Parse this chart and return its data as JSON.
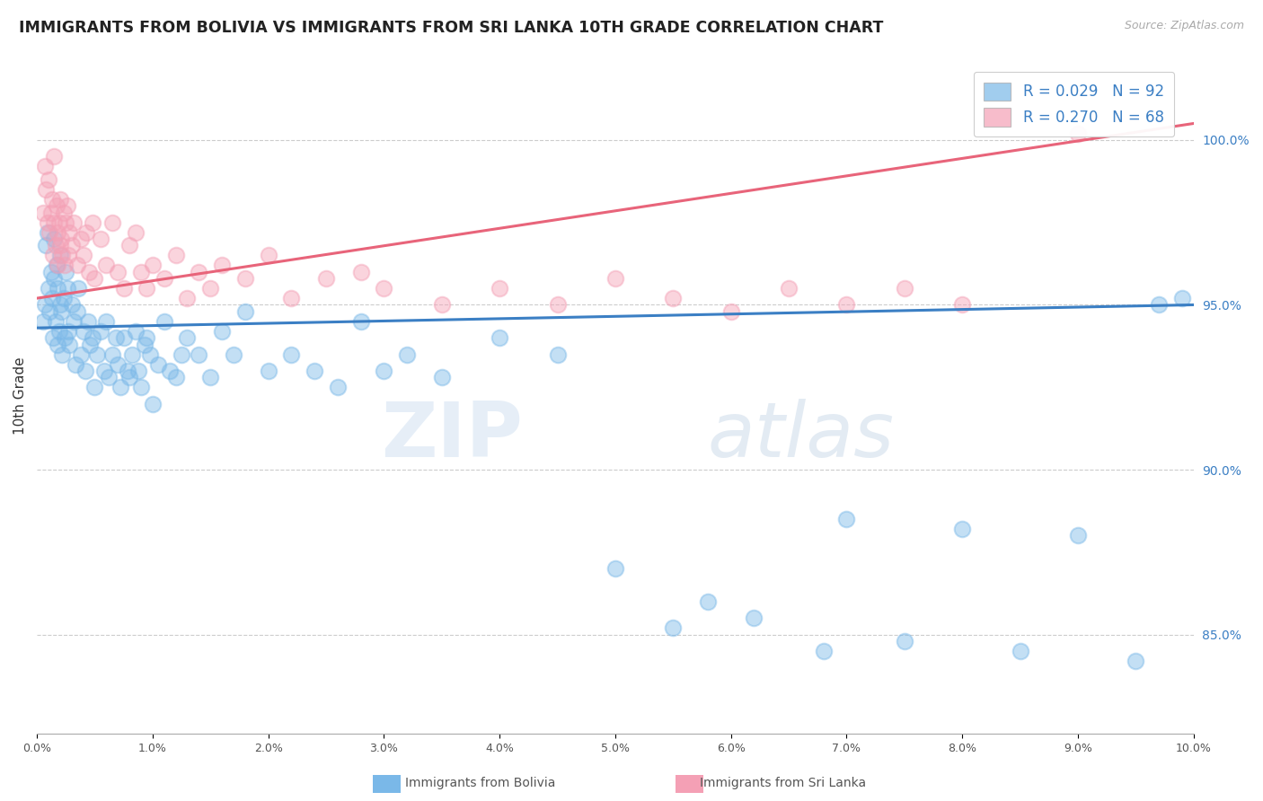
{
  "title": "IMMIGRANTS FROM BOLIVIA VS IMMIGRANTS FROM SRI LANKA 10TH GRADE CORRELATION CHART",
  "source": "Source: ZipAtlas.com",
  "ylabel": "10th Grade",
  "xlim": [
    0.0,
    10.0
  ],
  "ylim": [
    82.0,
    102.5
  ],
  "right_yticks": [
    85.0,
    90.0,
    95.0,
    100.0
  ],
  "right_yticklabels": [
    "85.0%",
    "90.0%",
    "95.0%",
    "100.0%"
  ],
  "bolivia_R": 0.029,
  "bolivia_N": 92,
  "srilanka_R": 0.27,
  "srilanka_N": 68,
  "bolivia_color": "#7ab8e8",
  "srilanka_color": "#f4a0b5",
  "bolivia_line_color": "#3b7fc4",
  "srilanka_line_color": "#e8647a",
  "legend_bolivia": "Immigrants from Bolivia",
  "legend_srilanka": "Immigrants from Sri Lanka",
  "bolivia_x": [
    0.05,
    0.07,
    0.08,
    0.09,
    0.1,
    0.11,
    0.12,
    0.13,
    0.14,
    0.15,
    0.15,
    0.16,
    0.17,
    0.18,
    0.18,
    0.19,
    0.2,
    0.2,
    0.21,
    0.22,
    0.23,
    0.24,
    0.25,
    0.26,
    0.27,
    0.28,
    0.3,
    0.32,
    0.33,
    0.35,
    0.36,
    0.38,
    0.4,
    0.42,
    0.44,
    0.46,
    0.48,
    0.5,
    0.52,
    0.55,
    0.58,
    0.6,
    0.62,
    0.65,
    0.68,
    0.7,
    0.72,
    0.75,
    0.78,
    0.8,
    0.82,
    0.85,
    0.88,
    0.9,
    0.93,
    0.95,
    0.98,
    1.0,
    1.05,
    1.1,
    1.15,
    1.2,
    1.25,
    1.3,
    1.4,
    1.5,
    1.6,
    1.7,
    1.8,
    2.0,
    2.2,
    2.4,
    2.6,
    2.8,
    3.0,
    3.2,
    3.5,
    4.0,
    4.5,
    5.0,
    5.5,
    5.8,
    6.2,
    6.8,
    7.0,
    7.5,
    8.0,
    8.5,
    9.0,
    9.5,
    9.7,
    9.9
  ],
  "bolivia_y": [
    94.5,
    95.0,
    96.8,
    97.2,
    95.5,
    94.8,
    96.0,
    95.2,
    94.0,
    95.8,
    97.0,
    94.5,
    96.2,
    93.8,
    95.5,
    94.2,
    96.5,
    95.0,
    94.8,
    93.5,
    95.2,
    94.0,
    96.0,
    95.5,
    94.2,
    93.8,
    95.0,
    94.5,
    93.2,
    94.8,
    95.5,
    93.5,
    94.2,
    93.0,
    94.5,
    93.8,
    94.0,
    92.5,
    93.5,
    94.2,
    93.0,
    94.5,
    92.8,
    93.5,
    94.0,
    93.2,
    92.5,
    94.0,
    93.0,
    92.8,
    93.5,
    94.2,
    93.0,
    92.5,
    93.8,
    94.0,
    93.5,
    92.0,
    93.2,
    94.5,
    93.0,
    92.8,
    93.5,
    94.0,
    93.5,
    92.8,
    94.2,
    93.5,
    94.8,
    93.0,
    93.5,
    93.0,
    92.5,
    94.5,
    93.0,
    93.5,
    92.8,
    94.0,
    93.5,
    87.0,
    85.2,
    86.0,
    85.5,
    84.5,
    88.5,
    84.8,
    88.2,
    84.5,
    88.0,
    84.2,
    95.0,
    95.2
  ],
  "srilanka_x": [
    0.05,
    0.07,
    0.08,
    0.09,
    0.1,
    0.11,
    0.12,
    0.13,
    0.14,
    0.15,
    0.15,
    0.16,
    0.17,
    0.18,
    0.18,
    0.19,
    0.2,
    0.2,
    0.21,
    0.22,
    0.23,
    0.24,
    0.25,
    0.26,
    0.27,
    0.28,
    0.3,
    0.32,
    0.35,
    0.38,
    0.4,
    0.43,
    0.45,
    0.48,
    0.5,
    0.55,
    0.6,
    0.65,
    0.7,
    0.75,
    0.8,
    0.85,
    0.9,
    0.95,
    1.0,
    1.1,
    1.2,
    1.3,
    1.4,
    1.5,
    1.6,
    1.8,
    2.0,
    2.2,
    2.5,
    2.8,
    3.0,
    3.5,
    4.0,
    4.5,
    5.0,
    5.5,
    6.0,
    6.5,
    7.0,
    7.5,
    8.0,
    9.0
  ],
  "srilanka_y": [
    97.8,
    99.2,
    98.5,
    97.5,
    98.8,
    97.2,
    97.8,
    98.2,
    96.5,
    97.5,
    99.5,
    96.8,
    98.0,
    97.2,
    96.2,
    97.5,
    98.2,
    96.8,
    97.0,
    96.5,
    97.8,
    96.2,
    97.5,
    98.0,
    96.5,
    97.2,
    96.8,
    97.5,
    96.2,
    97.0,
    96.5,
    97.2,
    96.0,
    97.5,
    95.8,
    97.0,
    96.2,
    97.5,
    96.0,
    95.5,
    96.8,
    97.2,
    96.0,
    95.5,
    96.2,
    95.8,
    96.5,
    95.2,
    96.0,
    95.5,
    96.2,
    95.8,
    96.5,
    95.2,
    95.8,
    96.0,
    95.5,
    95.0,
    95.5,
    95.0,
    95.8,
    95.2,
    94.8,
    95.5,
    95.0,
    95.5,
    95.0,
    100.2
  ]
}
